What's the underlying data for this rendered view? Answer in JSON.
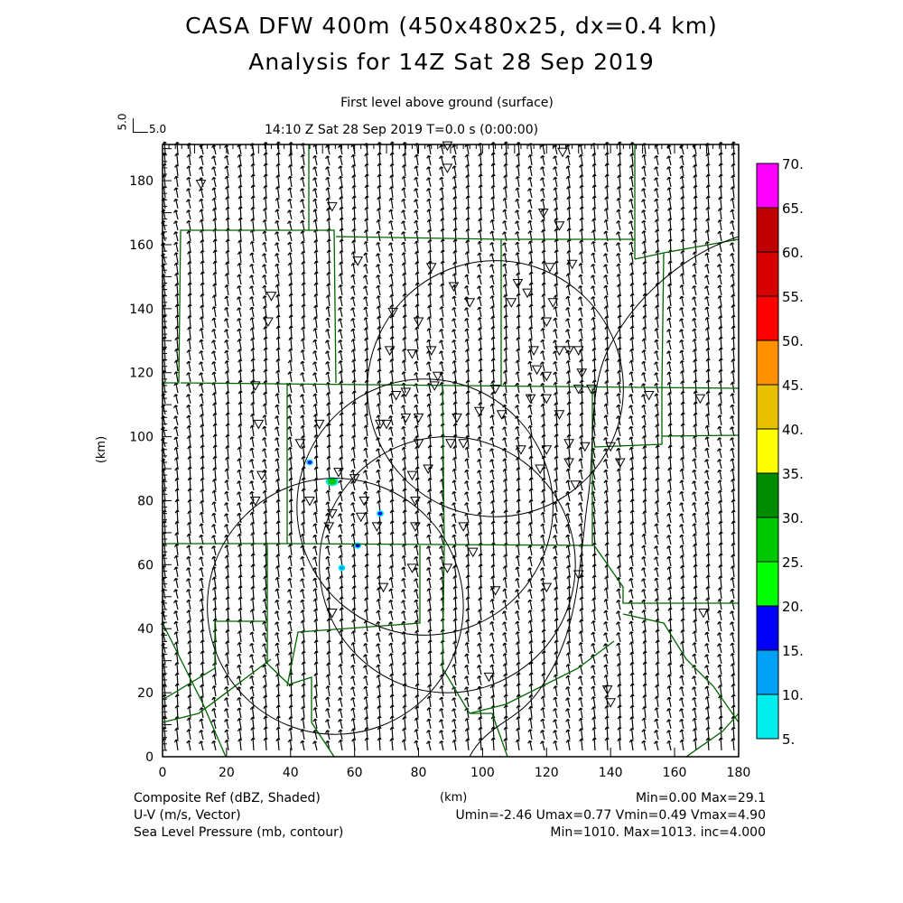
{
  "header": {
    "title_line1": "CASA DFW 400m (450x480x25, dx=0.4 km)",
    "title_line2": "Analysis for 14Z Sat 28 Sep 2019",
    "level": "First level above ground (surface)",
    "time": "14:10 Z Sat 28 Sep 2019    T=0.0 s (0:00:00)",
    "vector_key_v": "5.0",
    "vector_key_u": "5.0"
  },
  "footer": {
    "field1_label": "Composite Ref (dBZ, Shaded)",
    "field1_stats": "Min=0.00 Max=29.1",
    "field2_label": "U-V (m/s, Vector)",
    "field2_stats": "Umin=-2.46 Umax=0.77 Vmin=0.49 Vmax=4.90",
    "field3_label": "Sea Level Pressure (mb, contour)",
    "field3_stats": "Min=1010. Max=1013. inc=4.000",
    "xunit": "(km)"
  },
  "chart_data": {
    "type": "heatmap",
    "xlabel": "(km)",
    "ylabel": "(km)",
    "xlim": [
      0,
      180
    ],
    "ylim": [
      0,
      192
    ],
    "xticks": [
      "0",
      "20",
      "40",
      "60",
      "80",
      "100",
      "120",
      "140",
      "160",
      "180"
    ],
    "yticks": [
      "0",
      "20",
      "40",
      "60",
      "80",
      "100",
      "120",
      "140",
      "160",
      "180"
    ],
    "colorbar": {
      "levels": [
        "5.",
        "10.",
        "15.",
        "20.",
        "25.",
        "30.",
        "35.",
        "40.",
        "45.",
        "50.",
        "55.",
        "60.",
        "65.",
        "70."
      ],
      "colors": [
        "#00eeee",
        "#00a0f6",
        "#0000f6",
        "#00ff00",
        "#00c800",
        "#008c00",
        "#ffff00",
        "#e7c000",
        "#ff9000",
        "#ff0000",
        "#d60000",
        "#c00000",
        "#ff00ff"
      ]
    },
    "reflectivity_echoes": [
      {
        "x": 46,
        "y": 92,
        "dbz": 15
      },
      {
        "x": 53,
        "y": 86,
        "dbz": 29
      },
      {
        "x": 68,
        "y": 76,
        "dbz": 15
      },
      {
        "x": 61,
        "y": 66,
        "dbz": 15
      },
      {
        "x": 56,
        "y": 59,
        "dbz": 10
      }
    ],
    "wind": {
      "u_typical": -0.8,
      "v_typical": 3.2,
      "umin": -2.46,
      "umax": 0.77,
      "vmin": 0.49,
      "vmax": 4.9
    },
    "range_rings_km": [
      {
        "x": 104,
        "y": 115,
        "r": 40
      },
      {
        "x": 82,
        "y": 78,
        "r": 40
      },
      {
        "x": 89,
        "y": 60,
        "r": 40
      },
      {
        "x": 54,
        "y": 47,
        "r": 40
      }
    ],
    "stations": [
      [
        12,
        179
      ],
      [
        53,
        172
      ],
      [
        61,
        155
      ],
      [
        89,
        191
      ],
      [
        89,
        184
      ],
      [
        125,
        189
      ],
      [
        119,
        170
      ],
      [
        124,
        166
      ],
      [
        128,
        154
      ],
      [
        121,
        153
      ],
      [
        84,
        153
      ],
      [
        34,
        144
      ],
      [
        33,
        136
      ],
      [
        72,
        139
      ],
      [
        80,
        136
      ],
      [
        91,
        147
      ],
      [
        96,
        142
      ],
      [
        111,
        148
      ],
      [
        114,
        145
      ],
      [
        109,
        142
      ],
      [
        122,
        142
      ],
      [
        120,
        136
      ],
      [
        71,
        127
      ],
      [
        78,
        126
      ],
      [
        84,
        127
      ],
      [
        116,
        127
      ],
      [
        124,
        127
      ],
      [
        127,
        127
      ],
      [
        130,
        127
      ],
      [
        117,
        121
      ],
      [
        120,
        119
      ],
      [
        131,
        120
      ],
      [
        86,
        119
      ],
      [
        29,
        116
      ],
      [
        73,
        113
      ],
      [
        76,
        114
      ],
      [
        85,
        116
      ],
      [
        104,
        115
      ],
      [
        115,
        112
      ],
      [
        120,
        112
      ],
      [
        130,
        115
      ],
      [
        134,
        115
      ],
      [
        152,
        113
      ],
      [
        168,
        112
      ],
      [
        30,
        104
      ],
      [
        49,
        104
      ],
      [
        68,
        104
      ],
      [
        70,
        104
      ],
      [
        76,
        106
      ],
      [
        80,
        106
      ],
      [
        92,
        106
      ],
      [
        99,
        108
      ],
      [
        106,
        107
      ],
      [
        124,
        107
      ],
      [
        43,
        98
      ],
      [
        94,
        98
      ],
      [
        90,
        98
      ],
      [
        80,
        98
      ],
      [
        112,
        96
      ],
      [
        120,
        96
      ],
      [
        127,
        98
      ],
      [
        132,
        97
      ],
      [
        140,
        97
      ],
      [
        143,
        92
      ],
      [
        31,
        88
      ],
      [
        55,
        89
      ],
      [
        60,
        87
      ],
      [
        78,
        88
      ],
      [
        83,
        90
      ],
      [
        118,
        90
      ],
      [
        127,
        92
      ],
      [
        129,
        85
      ],
      [
        29,
        80
      ],
      [
        46,
        80
      ],
      [
        53,
        76
      ],
      [
        62,
        75
      ],
      [
        67,
        72
      ],
      [
        79,
        80
      ],
      [
        63,
        80
      ],
      [
        79,
        72
      ],
      [
        94,
        72
      ],
      [
        52,
        72
      ],
      [
        97,
        64
      ],
      [
        89,
        59
      ],
      [
        78,
        59
      ],
      [
        130,
        57
      ],
      [
        69,
        53
      ],
      [
        104,
        52
      ],
      [
        120,
        53
      ],
      [
        53,
        45
      ],
      [
        169,
        45
      ],
      [
        102,
        25
      ],
      [
        139,
        21
      ],
      [
        140,
        17
      ]
    ]
  }
}
